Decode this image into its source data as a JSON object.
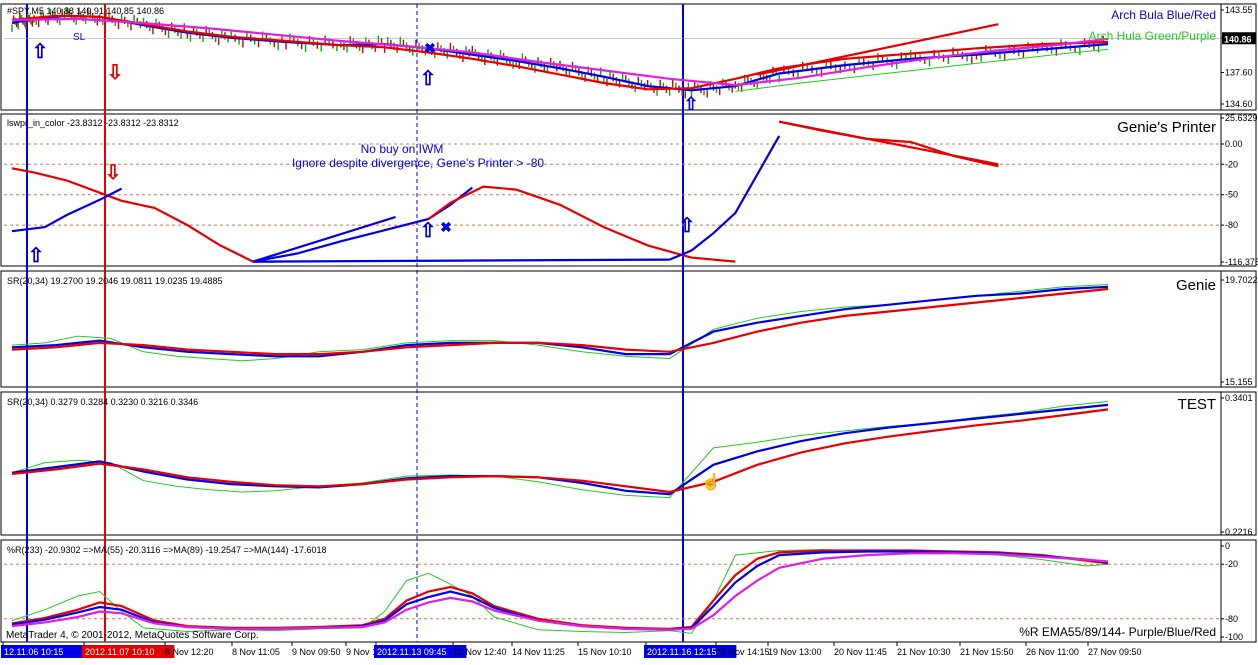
{
  "app": {
    "copyright": "MetaTrader 4, © 2001-2012, MetaQuotes Software Corp."
  },
  "colors": {
    "blue": "#0000e6",
    "red": "#e60000",
    "green": "#22cc22",
    "magenta": "#e020e0",
    "level_line": "#c87850",
    "candle_up": "#00aa00",
    "candle_down": "#cc0000"
  },
  "chart_data": [
    {
      "type": "line",
      "panel": "price",
      "header": "#SPY,M5 140.88 140.91 140.85 140.86",
      "label_blue": "Arch Bula Blue/Red",
      "label_green": "Arch Hula Green/Purple",
      "annotation_sl": "SL",
      "y_ticks": [
        "143.55",
        "140.86",
        "137.60",
        "134.60"
      ],
      "ylim": [
        134.6,
        143.55
      ],
      "current_price": "140.86",
      "series": [
        {
          "color": "blue",
          "x": [
            0,
            2,
            5,
            8,
            12,
            16,
            20,
            25,
            30,
            34,
            38,
            42,
            46,
            50,
            54,
            58,
            62,
            66,
            70,
            76,
            82,
            88,
            94,
            100
          ],
          "values": [
            142.3,
            142.7,
            143.0,
            142.9,
            142.1,
            141.4,
            140.9,
            140.5,
            140.2,
            140.3,
            139.9,
            139.3,
            138.7,
            138.0,
            137.2,
            136.3,
            135.9,
            136.3,
            137.5,
            138.3,
            138.9,
            139.3,
            139.8,
            140.3
          ]
        },
        {
          "color": "red",
          "x": [
            0,
            4,
            8,
            12,
            16,
            20,
            25,
            30,
            34,
            38,
            42,
            46,
            50,
            54,
            58,
            62,
            66,
            70,
            76,
            82,
            88,
            94,
            100
          ],
          "values": [
            142.6,
            143.0,
            142.9,
            142.2,
            141.5,
            141.0,
            140.6,
            140.2,
            140.0,
            139.5,
            138.9,
            138.2,
            137.4,
            136.6,
            136.0,
            136.1,
            137.0,
            138.0,
            138.9,
            139.4,
            139.9,
            140.3,
            140.5
          ]
        },
        {
          "color": "green",
          "x": [
            66,
            72,
            78,
            84,
            90,
            96,
            100
          ],
          "values": [
            135.8,
            136.6,
            137.3,
            138.0,
            138.7,
            139.4,
            139.8
          ]
        },
        {
          "color": "magenta",
          "x": [
            0,
            6,
            12,
            18,
            24,
            30,
            36,
            42,
            48,
            54,
            60,
            66,
            72,
            78,
            84,
            90,
            96,
            100
          ],
          "values": [
            142.6,
            142.7,
            142.3,
            141.8,
            141.2,
            140.6,
            140.1,
            139.5,
            138.6,
            137.8,
            137.0,
            136.4,
            137.1,
            138.1,
            139.0,
            139.7,
            140.3,
            140.8
          ]
        },
        {
          "color": "red",
          "x": [
            68,
            90
          ],
          "values": [
            137.4,
            142.2
          ]
        }
      ]
    },
    {
      "type": "line",
      "panel": "genies_printer",
      "header": "lswpr_in_color -23.8312 -23.8312 -23.8312",
      "title": "Genie's Printer",
      "annotation_line1": "No buy on IWM",
      "annotation_line2": "Ignore despite divergence, Gene's Printer > -80",
      "y_ticks": [
        "25.6329",
        "0.00",
        "-20",
        "-50",
        "-80",
        "-116.376"
      ],
      "levels": [
        0,
        -20,
        -50,
        -80
      ],
      "ylim": [
        -116.376,
        25.6329
      ],
      "series": [
        {
          "color": "red",
          "x": [
            0,
            2,
            5,
            8,
            10,
            13,
            16,
            19,
            22,
            24
          ],
          "values": [
            -24,
            -28,
            -36,
            -48,
            -56,
            -63,
            -80,
            -100,
            -116,
            -116
          ]
        },
        {
          "color": "blue",
          "x": [
            0,
            3,
            5,
            8,
            10
          ],
          "values": [
            -86,
            -82,
            -70,
            -55,
            -44
          ]
        },
        {
          "color": "blue",
          "x": [
            22,
            26,
            30,
            34,
            38,
            40,
            42
          ],
          "values": [
            -116,
            -108,
            -96,
            -85,
            -74,
            -60,
            -43
          ]
        },
        {
          "color": "red",
          "x": [
            38,
            40,
            43,
            46,
            50,
            54,
            58,
            62,
            66
          ],
          "values": [
            -74,
            -58,
            -42,
            -45,
            -60,
            -82,
            -100,
            -112,
            -116
          ]
        },
        {
          "color": "blue",
          "x": [
            22,
            35
          ],
          "values": [
            -116,
            -72
          ]
        },
        {
          "color": "blue",
          "x": [
            22,
            60
          ],
          "values": [
            -116,
            -114
          ]
        },
        {
          "color": "blue",
          "x": [
            60,
            62,
            64,
            66,
            68,
            70
          ],
          "values": [
            -114,
            -105,
            -88,
            -68,
            -30,
            8
          ]
        },
        {
          "color": "red",
          "x": [
            70,
            74,
            78,
            82,
            86,
            90
          ],
          "values": [
            22,
            13,
            5,
            2,
            -12,
            -22
          ]
        },
        {
          "color": "red",
          "x": [
            70,
            90
          ],
          "values": [
            22,
            -20
          ]
        }
      ]
    },
    {
      "type": "line",
      "panel": "genie",
      "header": "SR(20,34) 19.2700 19.2046 19.0811 19.0235 19.4885",
      "title": "Genie",
      "y_ticks": [
        "19.7022",
        "15.155"
      ],
      "ylim": [
        15.155,
        19.7022
      ],
      "series": [
        {
          "color": "green",
          "x": [
            0,
            3,
            6,
            9,
            12,
            15,
            18,
            21,
            24,
            28,
            32,
            36,
            40,
            44,
            48,
            52,
            56,
            60,
            64,
            68,
            72,
            76,
            80,
            84,
            88,
            92,
            96,
            100
          ],
          "values": [
            16.8,
            16.9,
            17.2,
            17.1,
            16.5,
            16.3,
            16.2,
            16.1,
            16.2,
            16.5,
            16.6,
            16.9,
            17.0,
            17.0,
            16.8,
            16.5,
            16.3,
            16.2,
            17.5,
            18.0,
            18.3,
            18.5,
            18.6,
            18.8,
            19.0,
            19.2,
            19.4,
            19.5
          ]
        },
        {
          "color": "blue",
          "x": [
            0,
            4,
            8,
            12,
            16,
            20,
            24,
            28,
            32,
            36,
            40,
            44,
            48,
            52,
            56,
            60,
            64,
            68,
            72,
            76,
            80,
            84,
            88,
            92,
            96,
            100
          ],
          "values": [
            16.7,
            16.8,
            17.0,
            16.7,
            16.5,
            16.4,
            16.3,
            16.3,
            16.5,
            16.8,
            16.9,
            16.9,
            16.9,
            16.7,
            16.4,
            16.4,
            17.4,
            17.8,
            18.1,
            18.4,
            18.6,
            18.8,
            19.0,
            19.1,
            19.3,
            19.4
          ]
        },
        {
          "color": "red",
          "x": [
            0,
            4,
            8,
            12,
            16,
            20,
            24,
            28,
            32,
            36,
            40,
            44,
            48,
            52,
            56,
            60,
            64,
            68,
            72,
            76,
            80,
            84,
            88,
            92,
            96,
            100
          ],
          "values": [
            16.6,
            16.7,
            16.9,
            16.8,
            16.6,
            16.5,
            16.4,
            16.4,
            16.5,
            16.7,
            16.8,
            16.9,
            16.9,
            16.8,
            16.6,
            16.5,
            16.9,
            17.4,
            17.8,
            18.1,
            18.3,
            18.5,
            18.7,
            18.9,
            19.1,
            19.3
          ]
        }
      ]
    },
    {
      "type": "line",
      "panel": "test",
      "header": "SR(20,34) 0.3279 0.3284 0.3230 0.3216 0.3346",
      "title": "TEST",
      "y_ticks": [
        "0.3401",
        "0.2216"
      ],
      "ylim": [
        0.2216,
        0.3401
      ],
      "series": [
        {
          "color": "green",
          "x": [
            0,
            3,
            6,
            9,
            12,
            15,
            18,
            21,
            24,
            28,
            32,
            36,
            40,
            44,
            48,
            52,
            56,
            60,
            64,
            68,
            72,
            76,
            80,
            84,
            88,
            92,
            96,
            100
          ],
          "values": [
            0.274,
            0.283,
            0.285,
            0.283,
            0.267,
            0.262,
            0.259,
            0.257,
            0.258,
            0.262,
            0.265,
            0.271,
            0.272,
            0.271,
            0.266,
            0.259,
            0.254,
            0.252,
            0.296,
            0.301,
            0.307,
            0.311,
            0.315,
            0.318,
            0.323,
            0.327,
            0.333,
            0.337
          ]
        },
        {
          "color": "blue",
          "x": [
            0,
            4,
            8,
            12,
            16,
            20,
            24,
            28,
            32,
            36,
            40,
            44,
            48,
            52,
            56,
            60,
            64,
            68,
            72,
            76,
            80,
            84,
            88,
            92,
            96,
            100
          ],
          "values": [
            0.274,
            0.279,
            0.284,
            0.275,
            0.268,
            0.264,
            0.262,
            0.261,
            0.264,
            0.269,
            0.271,
            0.271,
            0.27,
            0.265,
            0.258,
            0.255,
            0.281,
            0.293,
            0.302,
            0.309,
            0.314,
            0.318,
            0.322,
            0.326,
            0.33,
            0.334
          ]
        },
        {
          "color": "red",
          "x": [
            0,
            4,
            8,
            12,
            16,
            20,
            24,
            28,
            32,
            36,
            40,
            44,
            48,
            52,
            56,
            60,
            64,
            68,
            72,
            76,
            80,
            84,
            88,
            92,
            96,
            100
          ],
          "values": [
            0.273,
            0.277,
            0.282,
            0.277,
            0.27,
            0.266,
            0.263,
            0.262,
            0.264,
            0.268,
            0.27,
            0.271,
            0.27,
            0.267,
            0.262,
            0.257,
            0.266,
            0.281,
            0.292,
            0.3,
            0.306,
            0.311,
            0.316,
            0.32,
            0.325,
            0.33
          ]
        }
      ]
    },
    {
      "type": "line",
      "panel": "wpr",
      "header": "%R(233) -20.9302 =>MA(55) -20.3116 =>MA(89) -19.2547 =>MA(144) -17.6018",
      "title": "%R EMA55/89/144- Purple/Blue/Red",
      "y_ticks": [
        "0",
        "-20",
        "-80",
        "-100"
      ],
      "levels": [
        -20,
        -80
      ],
      "ylim": [
        -100,
        0
      ],
      "series": [
        {
          "color": "green",
          "x": [
            0,
            3,
            6,
            8,
            10,
            12,
            16,
            20,
            24,
            28,
            32,
            34,
            36,
            38,
            40,
            42,
            44,
            48,
            52,
            56,
            60,
            62,
            64,
            66,
            70,
            74,
            78,
            82,
            86,
            90,
            94,
            98,
            100
          ],
          "values": [
            -82,
            -70,
            -55,
            -50,
            -72,
            -90,
            -94,
            -92,
            -93,
            -91,
            -90,
            -72,
            -38,
            -30,
            -42,
            -55,
            -78,
            -92,
            -94,
            -95,
            -93,
            -96,
            -60,
            -10,
            -5,
            -4,
            -6,
            -7,
            -8,
            -10,
            -15,
            -22,
            -20
          ]
        },
        {
          "color": "red",
          "x": [
            0,
            3,
            6,
            8,
            10,
            13,
            16,
            20,
            24,
            28,
            32,
            34,
            36,
            38,
            40,
            42,
            44,
            48,
            52,
            56,
            60,
            62,
            64,
            66,
            68,
            70,
            74,
            78,
            82,
            86,
            90,
            94,
            98,
            100
          ],
          "values": [
            -85,
            -79,
            -70,
            -62,
            -66,
            -82,
            -88,
            -90,
            -90,
            -89,
            -87,
            -80,
            -60,
            -50,
            -45,
            -52,
            -66,
            -80,
            -87,
            -90,
            -91,
            -89,
            -60,
            -32,
            -14,
            -7,
            -5,
            -5,
            -5,
            -6,
            -7,
            -10,
            -16,
            -19
          ]
        },
        {
          "color": "blue",
          "x": [
            0,
            3,
            6,
            8,
            10,
            13,
            16,
            20,
            24,
            28,
            32,
            34,
            36,
            38,
            40,
            42,
            44,
            48,
            52,
            56,
            60,
            62,
            64,
            66,
            68,
            70,
            74,
            78,
            82,
            86,
            90,
            94,
            98,
            100
          ],
          "values": [
            -86,
            -81,
            -73,
            -67,
            -70,
            -84,
            -89,
            -91,
            -91,
            -90,
            -88,
            -82,
            -64,
            -56,
            -50,
            -56,
            -68,
            -82,
            -88,
            -91,
            -92,
            -90,
            -66,
            -40,
            -22,
            -10,
            -7,
            -6,
            -6,
            -7,
            -8,
            -11,
            -15,
            -18
          ]
        },
        {
          "color": "magenta",
          "x": [
            0,
            3,
            6,
            8,
            10,
            13,
            16,
            20,
            24,
            28,
            32,
            34,
            36,
            38,
            40,
            42,
            44,
            48,
            52,
            56,
            60,
            62,
            64,
            66,
            68,
            70,
            74,
            78,
            82,
            86,
            90,
            94,
            98,
            100
          ],
          "values": [
            -88,
            -84,
            -78,
            -72,
            -74,
            -85,
            -89,
            -91,
            -91,
            -90,
            -89,
            -84,
            -70,
            -62,
            -57,
            -61,
            -71,
            -82,
            -88,
            -91,
            -92,
            -91,
            -76,
            -55,
            -38,
            -24,
            -14,
            -10,
            -8,
            -8,
            -9,
            -12,
            -15,
            -17
          ]
        }
      ]
    }
  ],
  "time_axis": {
    "labels": [
      "12.11.06 10:15",
      "2012.11.07 10:10",
      "8 Nov 12:20",
      "8 Nov 11:05",
      "9 Nov 09:50",
      "9 Nov 15:10",
      "2012.11.13 09:45",
      "13 Nov 12:40",
      "14 Nov 11:25",
      "15 Nov 10:10",
      "2012.11.16 12:15",
      "16 Nov 14:15",
      "19 Nov 13:00",
      "20 Nov 11:45",
      "21 Nov 10:30",
      "21 Nov 15:50",
      "26 Nov 11:00",
      "27 Nov 09:50"
    ],
    "highlighted": [
      "12.11.06 10:15",
      "2012.11.07 10:10",
      "2012.11.13 09:45",
      "2012.11.16 12:15"
    ],
    "highlight_colors": [
      "blue",
      "red",
      "blue",
      "blue"
    ]
  },
  "markers": {
    "arrow_up": "⇧",
    "arrow_down": "⇩",
    "cross": "✖",
    "hand": "☝"
  }
}
